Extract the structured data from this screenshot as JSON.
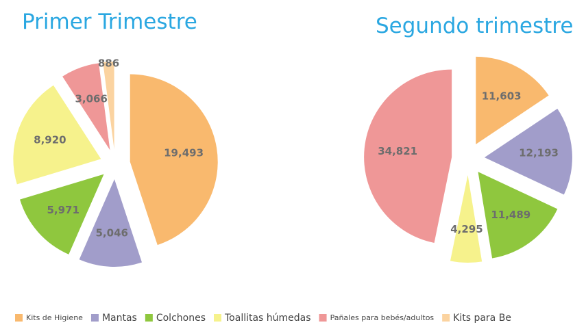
{
  "chart_data": [
    {
      "type": "pie",
      "title": "Primer Trimestre",
      "categories": [
        "Kits de Higiene",
        "Mantas",
        "Colchones",
        "Toallitas húmedas",
        "Pañales para bebés/adultos",
        "Kits para Be"
      ],
      "values": [
        19493,
        5046,
        5971,
        8920,
        3066,
        886
      ],
      "value_labels": [
        "19,493",
        "5,046",
        "5,971",
        "8,920",
        "3,066",
        "886"
      ],
      "colors": [
        "#f9b96e",
        "#a19dca",
        "#8fc73e",
        "#f6f28c",
        "#ef9797",
        "#fbd3a0"
      ]
    },
    {
      "type": "pie",
      "title": "Segundo trimestre",
      "categories": [
        "Kits de Higiene",
        "Mantas",
        "Colchones",
        "Toallitas húmedas",
        "Pañales para bebés/adultos"
      ],
      "values": [
        11603,
        12193,
        11489,
        4295,
        34821
      ],
      "value_labels": [
        "11,603",
        "12,193",
        "11,489",
        "4,295",
        "34,821"
      ],
      "colors": [
        "#f9b96e",
        "#a19dca",
        "#8fc73e",
        "#f6f28c",
        "#ef9797"
      ]
    }
  ],
  "legend": [
    {
      "name": "Kits de Higiene",
      "color": "#f9b96e"
    },
    {
      "name": "Mantas",
      "color": "#a19dca"
    },
    {
      "name": "Colchones",
      "color": "#8fc73e"
    },
    {
      "name": "Toallitas húmedas",
      "color": "#f6f28c"
    },
    {
      "name": "Pañales para bebés/adultos",
      "color": "#ef9797"
    },
    {
      "name": "Kits para Be",
      "color": "#fbd3a0"
    }
  ]
}
